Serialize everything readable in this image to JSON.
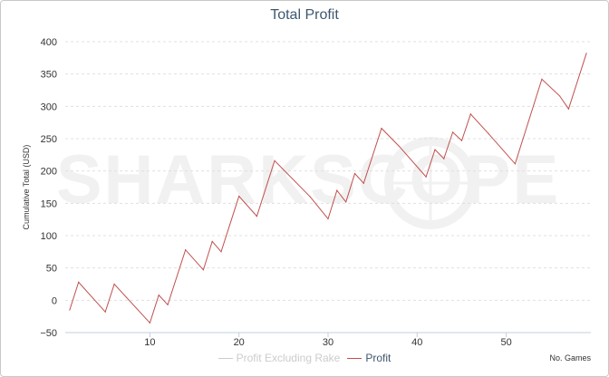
{
  "chart_data": {
    "type": "line",
    "title": "Total Profit",
    "xlabel": "No. Games",
    "ylabel": "Cumulative Total (USD)",
    "xlim": [
      0.5,
      59.5
    ],
    "ylim": [
      -50,
      400
    ],
    "xticks": [
      10,
      20,
      30,
      40,
      50
    ],
    "yticks": [
      -50,
      0,
      50,
      100,
      150,
      200,
      250,
      300,
      350,
      400
    ],
    "grid": true,
    "watermark": "SHARKSCOPE",
    "series": [
      {
        "name": "Profit Excluding Rake",
        "color": "#cccccc",
        "hidden": true,
        "x": [],
        "values": []
      },
      {
        "name": "Profit",
        "color": "#c0504d",
        "x": [
          1,
          2,
          5,
          6,
          10,
          11,
          12,
          14,
          16,
          17,
          18,
          20,
          22,
          24,
          28,
          30,
          31,
          32,
          33,
          34,
          36,
          38,
          41,
          42,
          43,
          44,
          45,
          46,
          48,
          51,
          54,
          56,
          57,
          59
        ],
        "values": [
          -15,
          28,
          -18,
          25,
          -35,
          8,
          -7,
          78,
          47,
          91,
          75,
          161,
          130,
          216,
          160,
          126,
          170,
          152,
          196,
          181,
          266,
          238,
          191,
          233,
          219,
          260,
          247,
          288,
          258,
          211,
          342,
          316,
          296,
          382
        ]
      }
    ]
  }
}
